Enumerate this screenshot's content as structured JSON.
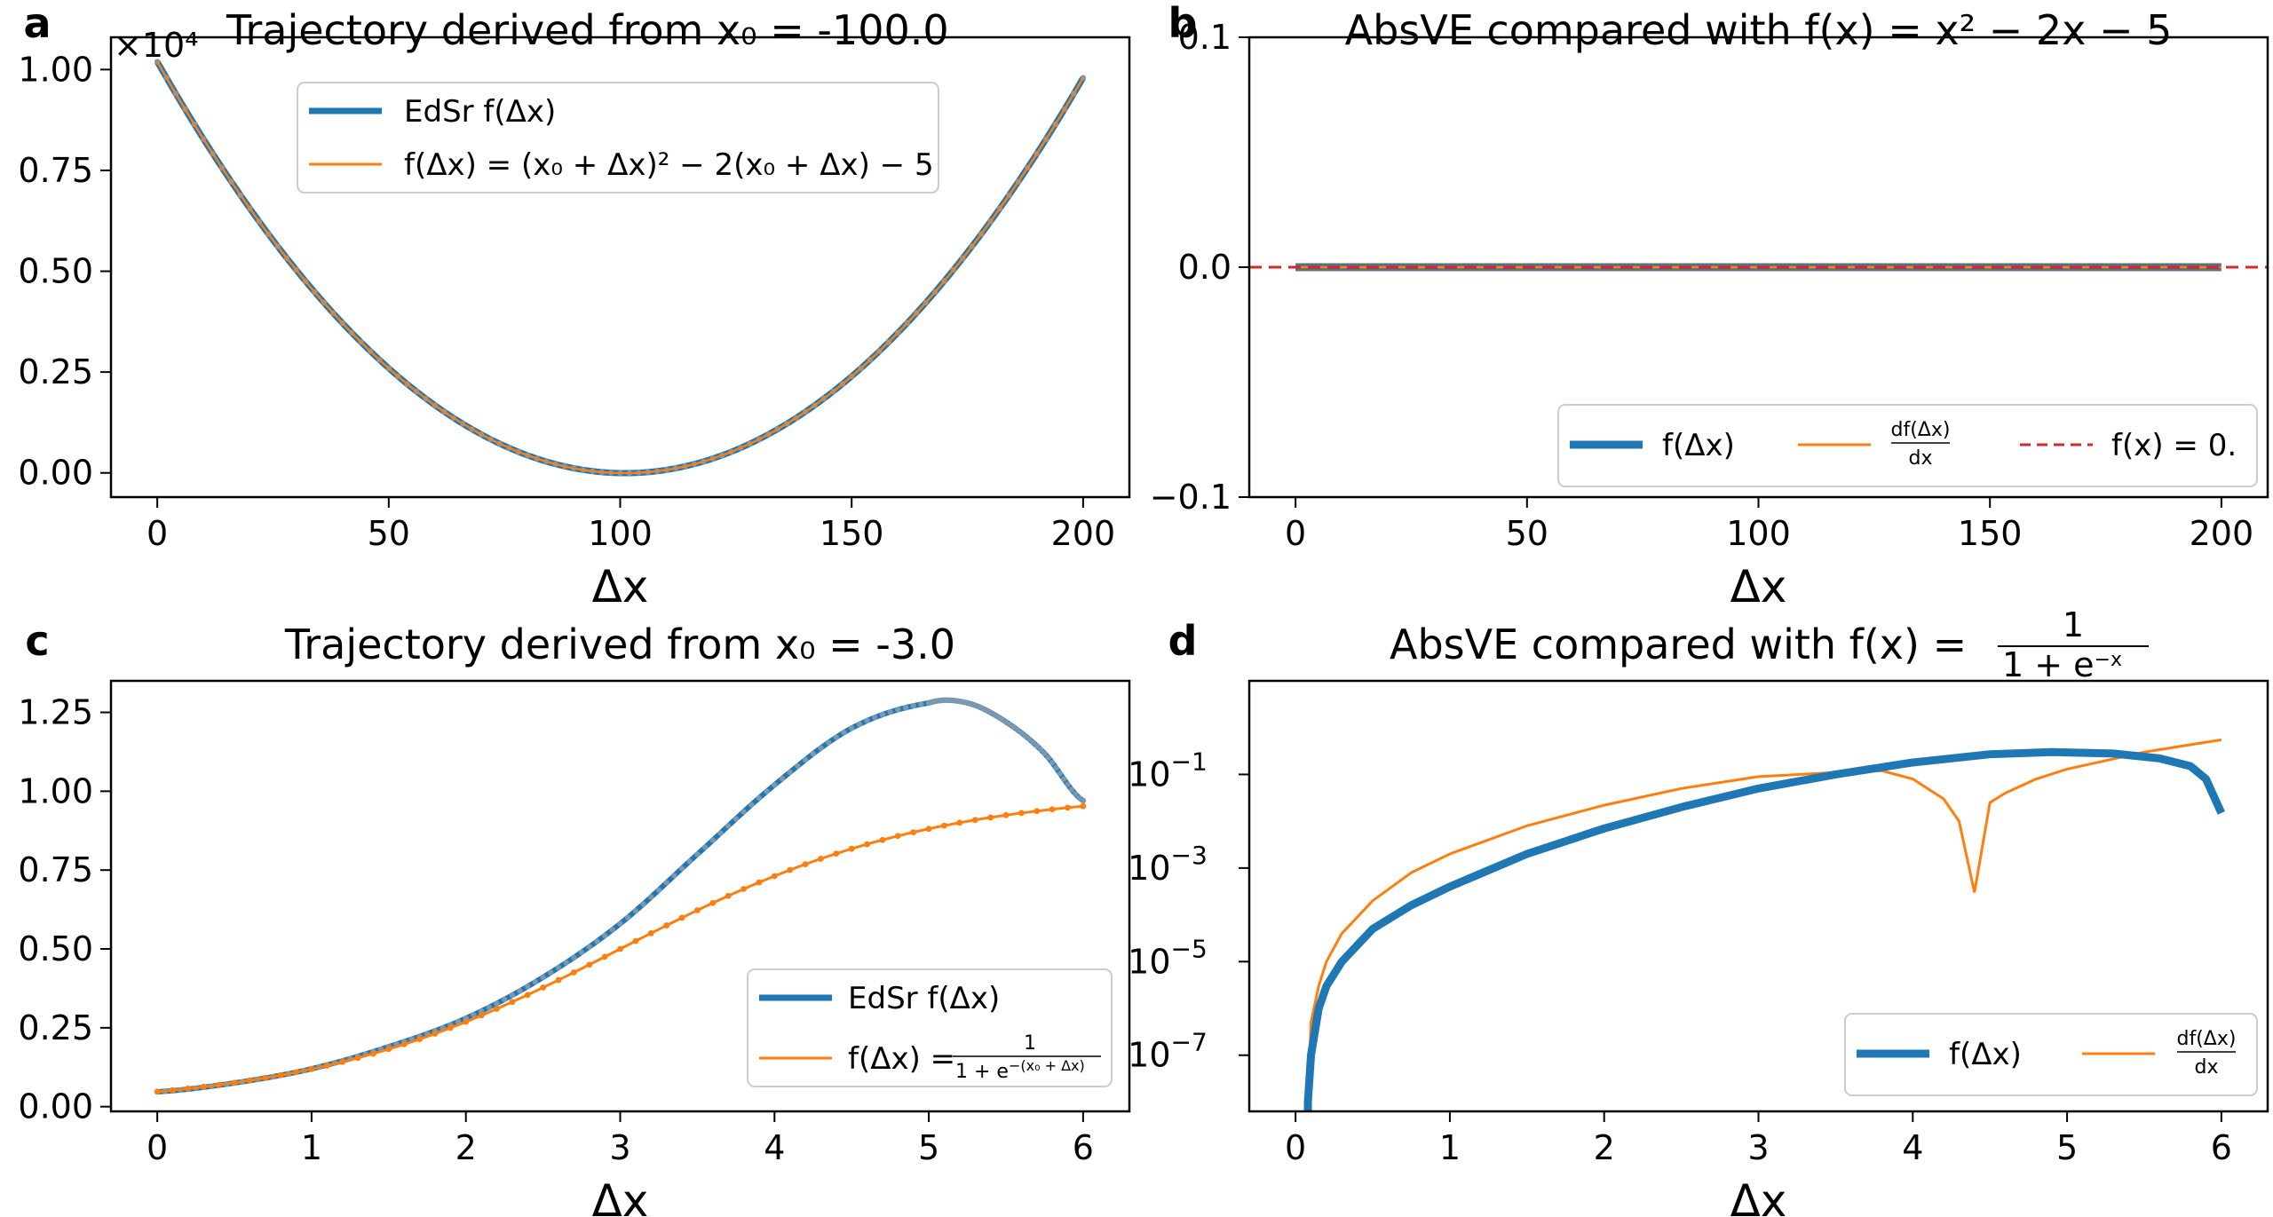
{
  "chart_data": [
    {
      "panel": "a",
      "type": "line",
      "title": "Trajectory derived from x₀ = -100.0",
      "offset_label": "×10⁴",
      "xlabel": "Δx",
      "ylabel": "",
      "xlim": [
        -10,
        210
      ],
      "ylim": [
        -0.06,
        1.08
      ],
      "xticks": [
        "0",
        "50",
        "100",
        "150",
        "200"
      ],
      "yticks": [
        "0.00",
        "0.25",
        "0.50",
        "0.75",
        "1.00"
      ],
      "legend_position": "upper-center",
      "series": [
        {
          "name": "EdSr f(Δx)",
          "color": "#1f77b4",
          "x_range": [
            0,
            200
          ],
          "function": "((-100+dx)^2 - 2(-100+dx) - 5)/1e4"
        },
        {
          "name": "f(Δx) = (x₀ + Δx)² − 2(x₀ + Δx) − 5",
          "color": "#ff7f0e"
        }
      ]
    },
    {
      "panel": "b",
      "type": "line",
      "title": "AbsVE compared with f(x) = x² − 2x − 5",
      "xlabel": "Δx",
      "ylabel": "",
      "xlim": [
        -10,
        210
      ],
      "ylim": [
        -0.1,
        0.1
      ],
      "xticks": [
        "0",
        "50",
        "100",
        "150",
        "200"
      ],
      "yticks": [
        "−0.1",
        "0.0",
        "0.1"
      ],
      "legend_position": "lower-right",
      "series": [
        {
          "name": "f(Δx)",
          "color": "#1f77b4",
          "x_range": [
            0,
            200
          ],
          "values_constant": 0
        },
        {
          "name_numerator": "df(Δx)",
          "name_denominator": "dx",
          "color": "#ff7f0e",
          "x_range": [
            0,
            200
          ],
          "values_constant": 0
        },
        {
          "name": "f(x) = 0.",
          "color": "#d62728",
          "style": "dashed",
          "values_constant": 0
        }
      ]
    },
    {
      "panel": "c",
      "type": "line",
      "title": "Trajectory derived from x₀ = -3.0",
      "xlabel": "Δx",
      "ylabel": "",
      "xlim": [
        -0.3,
        6.3
      ],
      "ylim": [
        -0.015,
        1.35
      ],
      "xticks": [
        "0",
        "1",
        "2",
        "3",
        "4",
        "5",
        "6"
      ],
      "yticks": [
        "0.00",
        "0.25",
        "0.50",
        "0.75",
        "1.00",
        "1.25"
      ],
      "legend_position": "lower-right",
      "series": [
        {
          "name": "EdSr f(Δx)",
          "color": "#1f77b4",
          "x": [
            0,
            0.5,
            1,
            1.5,
            2,
            2.5,
            3,
            3.5,
            4,
            4.5,
            5,
            5.25,
            5.5,
            5.75,
            6
          ],
          "y": [
            0.047,
            0.075,
            0.12,
            0.19,
            0.28,
            0.41,
            0.58,
            0.8,
            1.02,
            1.2,
            1.28,
            1.28,
            1.22,
            1.12,
            0.97
          ]
        },
        {
          "name_prefix": "f(Δx) =",
          "name_numerator": "1",
          "name_denominator": "1 + e",
          "name_exponent": "−(x₀ + Δx)",
          "color": "#ff7f0e",
          "x_range": [
            0,
            6
          ],
          "function": "1/(1+e^-(-3+dx))"
        }
      ]
    },
    {
      "panel": "d",
      "type": "line",
      "title_prefix": "AbsVE compared with f(x) =",
      "title_numerator": "1",
      "title_denominator": "1 + e",
      "title_exponent": "−x",
      "xlabel": "Δx",
      "ylabel": "",
      "yscale": "log",
      "xlim": [
        -0.3,
        6.3
      ],
      "ylim_log10": [
        -8.2,
        1
      ],
      "xticks": [
        "0",
        "1",
        "2",
        "3",
        "4",
        "5",
        "6"
      ],
      "yticks": [
        {
          "base": "10",
          "exp": "−7",
          "log10": -7
        },
        {
          "base": "10",
          "exp": "−5",
          "log10": -5
        },
        {
          "base": "10",
          "exp": "−3",
          "log10": -3
        },
        {
          "base": "10",
          "exp": "−1",
          "log10": -1
        }
      ],
      "legend_position": "lower-right",
      "series": [
        {
          "name": "f(Δx)",
          "color": "#1f77b4",
          "x": [
            0.08,
            0.1,
            0.15,
            0.2,
            0.3,
            0.5,
            0.75,
            1,
            1.5,
            2,
            2.5,
            3,
            3.5,
            4,
            4.5,
            4.9,
            5.3,
            5.6,
            5.8,
            5.9,
            6
          ],
          "y": [
            1e-08,
            1e-07,
            1e-06,
            3e-06,
            1e-05,
            5e-05,
            0.00016,
            0.0004,
            0.002,
            0.007,
            0.02,
            0.05,
            0.1,
            0.18,
            0.27,
            0.3,
            0.28,
            0.22,
            0.15,
            0.08,
            0.015
          ]
        },
        {
          "name_numerator": "df(Δx)",
          "name_denominator": "dx",
          "color": "#ff7f0e",
          "x": [
            0.08,
            0.1,
            0.15,
            0.2,
            0.3,
            0.5,
            0.75,
            1,
            1.5,
            2,
            2.5,
            3,
            3.5,
            3.8,
            4.0,
            4.2,
            4.3,
            4.4,
            4.5,
            4.6,
            4.8,
            5.0,
            5.5,
            6
          ],
          "y": [
            1e-08,
            5e-07,
            3e-06,
            1e-05,
            4e-05,
            0.0002,
            0.0008,
            0.002,
            0.008,
            0.022,
            0.05,
            0.09,
            0.11,
            0.12,
            0.08,
            0.03,
            0.01,
            0.0003,
            0.025,
            0.04,
            0.08,
            0.13,
            0.3,
            0.55
          ]
        }
      ]
    }
  ]
}
